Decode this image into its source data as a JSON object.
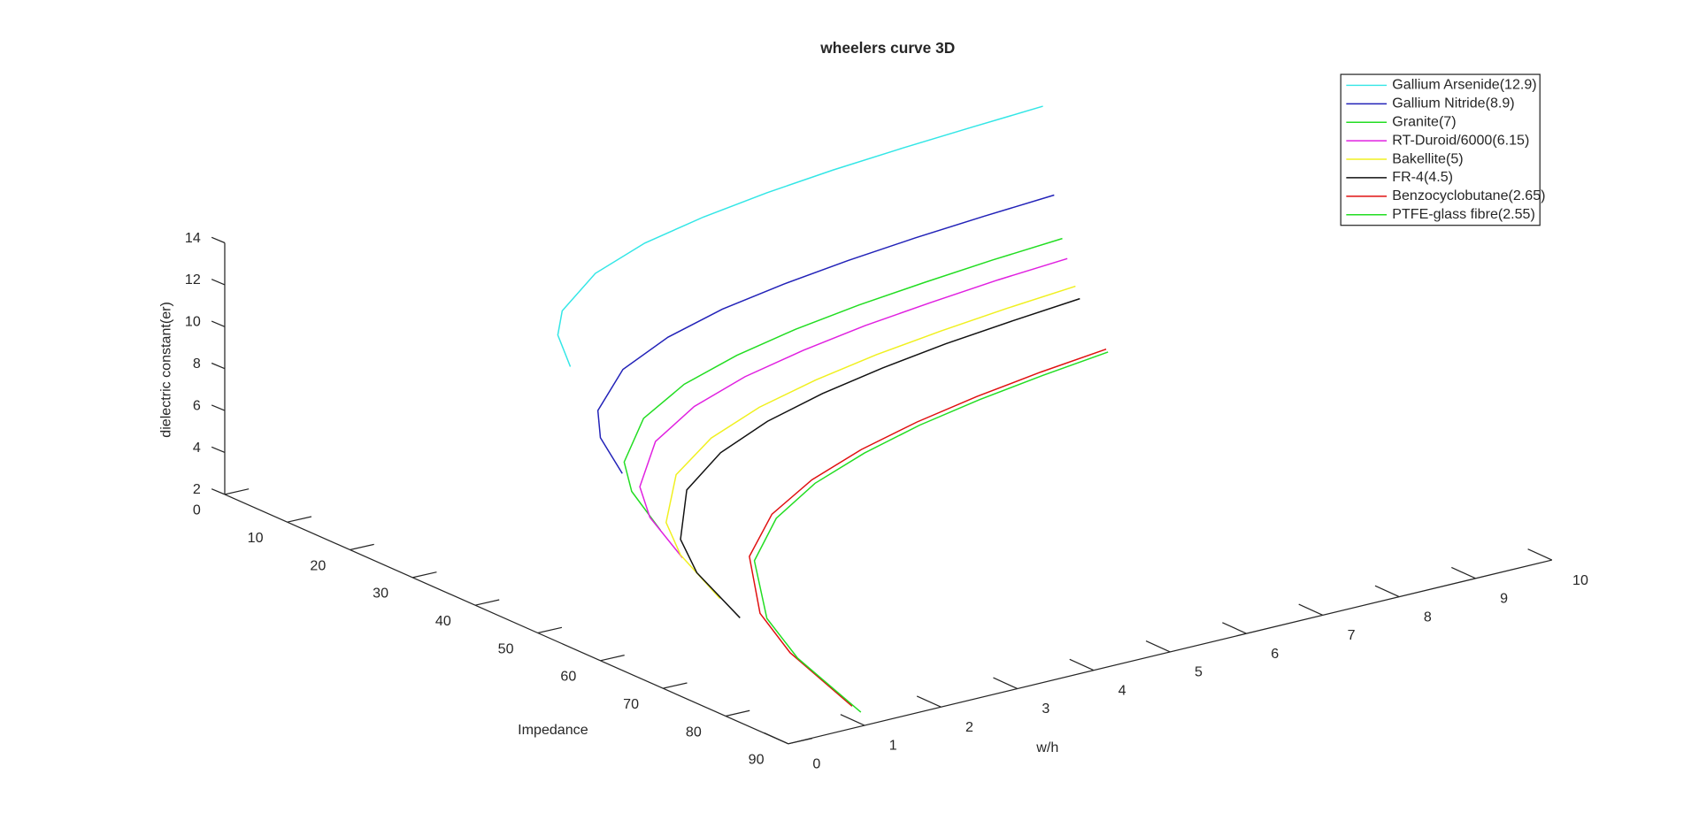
{
  "chart_data": {
    "type": "line3d",
    "title": "wheelers curve 3D",
    "xlabel": "w/h",
    "ylabel": "Impedance",
    "zlabel": "dielectric constant(er)",
    "x": [
      1,
      1.5,
      2,
      3,
      4,
      5,
      6,
      7,
      8,
      9,
      10
    ],
    "xlim": [
      0,
      10
    ],
    "xticks": [
      0,
      1,
      2,
      3,
      4,
      5,
      6,
      7,
      8,
      9,
      10
    ],
    "ylim": [
      0,
      90
    ],
    "yticks": [
      0,
      10,
      20,
      30,
      40,
      50,
      60,
      70,
      80,
      90
    ],
    "zlim": [
      2,
      14
    ],
    "zticks": [
      2,
      4,
      6,
      8,
      10,
      12,
      14
    ],
    "legend": "top-right",
    "series": [
      {
        "name": "Gallium Arsenide(12.9)",
        "color": "#33e6e6",
        "z": 12.9,
        "values": [
          43.0,
          34.9,
          29.5,
          22.6,
          18.3,
          15.5,
          13.4,
          11.8,
          10.6,
          9.6,
          8.7
        ]
      },
      {
        "name": "Gallium Nitride(8.9)",
        "color": "#2222b8",
        "z": 8.9,
        "values": [
          51.3,
          41.7,
          35.2,
          27.0,
          22.0,
          18.5,
          16.1,
          14.2,
          12.7,
          11.5,
          10.5
        ]
      },
      {
        "name": "Granite(7)",
        "color": "#22dd22",
        "z": 7,
        "values": [
          57.4,
          46.7,
          39.4,
          30.3,
          24.6,
          20.8,
          18.0,
          15.9,
          14.3,
          12.9,
          11.8
        ]
      },
      {
        "name": "RT-Duroid/6000(6.15)",
        "color": "#e020e0",
        "z": 6.15,
        "values": [
          60.9,
          49.6,
          41.9,
          32.2,
          26.2,
          22.1,
          19.2,
          16.9,
          15.2,
          13.7,
          12.6
        ]
      },
      {
        "name": "Bakellite(5)",
        "color": "#f0f020",
        "z": 5,
        "values": [
          66.9,
          54.5,
          46.1,
          35.5,
          28.9,
          24.4,
          21.2,
          18.7,
          16.8,
          15.2,
          13.9
        ]
      },
      {
        "name": "FR-4(4.5)",
        "color": "#111111",
        "z": 4.5,
        "values": [
          70.1,
          57.1,
          48.4,
          37.2,
          30.4,
          25.7,
          22.3,
          19.7,
          17.6,
          16.0,
          14.6
        ]
      },
      {
        "name": "Benzocyclobutane(2.65)",
        "color": "#e01010",
        "z": 2.65,
        "values": [
          88.0,
          72.0,
          61.1,
          47.2,
          38.6,
          32.8,
          28.5,
          25.2,
          22.6,
          20.5,
          18.8
        ]
      },
      {
        "name": "PTFE-glass fibre(2.55)",
        "color": "#22dd22",
        "z": 2.55,
        "values": [
          89.4,
          73.2,
          62.2,
          48.0,
          39.3,
          33.3,
          29.0,
          25.6,
          23.0,
          20.9,
          19.1
        ]
      }
    ]
  }
}
